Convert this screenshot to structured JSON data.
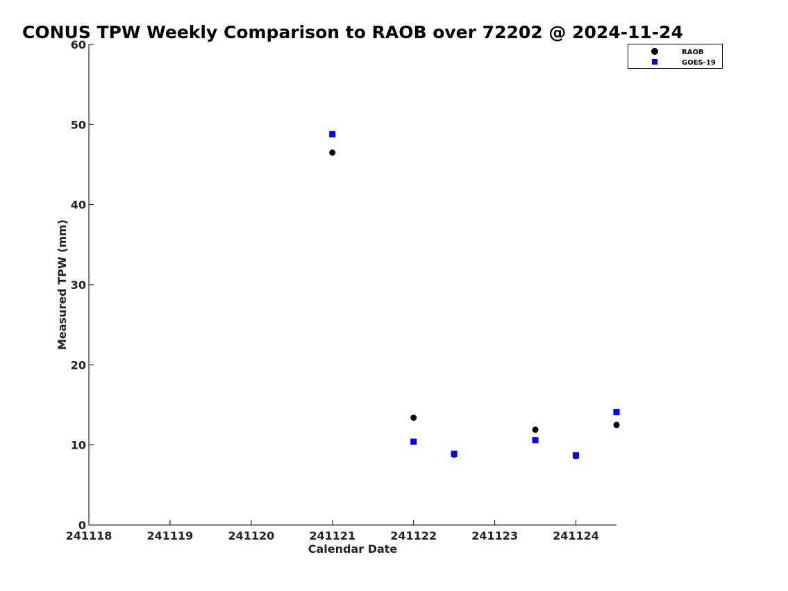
{
  "chart_data": {
    "type": "scatter",
    "title": "CONUS TPW Weekly Comparison to RAOB over 72202 @ 2024-11-24",
    "xlabel": "Calendar Date",
    "ylabel": "Measured TPW (mm)",
    "xlim": [
      241118,
      241124.5
    ],
    "ylim": [
      0,
      60
    ],
    "x_ticks": [
      241118,
      241119,
      241120,
      241121,
      241122,
      241123,
      241124
    ],
    "x_tick_labels": [
      "241118",
      "241119",
      "241120",
      "241121",
      "241122",
      "241123",
      "241124"
    ],
    "y_ticks": [
      0,
      10,
      20,
      30,
      40,
      50,
      60
    ],
    "y_tick_labels": [
      "0",
      "10",
      "20",
      "30",
      "40",
      "50",
      "60"
    ],
    "legend_position": "top-right",
    "series": [
      {
        "name": "RAOB",
        "marker": "circle",
        "color": "#000000",
        "x": [
          241121,
          241122,
          241122.5,
          241123.5,
          241124,
          241124.5
        ],
        "y": [
          46.5,
          13.4,
          8.8,
          11.9,
          8.6,
          12.5
        ]
      },
      {
        "name": "GOES-19",
        "marker": "square",
        "color": "#0000ff",
        "x": [
          241121,
          241122,
          241122.5,
          241123.5,
          241124,
          241124.5
        ],
        "y": [
          48.8,
          10.4,
          8.9,
          10.6,
          8.7,
          14.1
        ]
      }
    ]
  }
}
